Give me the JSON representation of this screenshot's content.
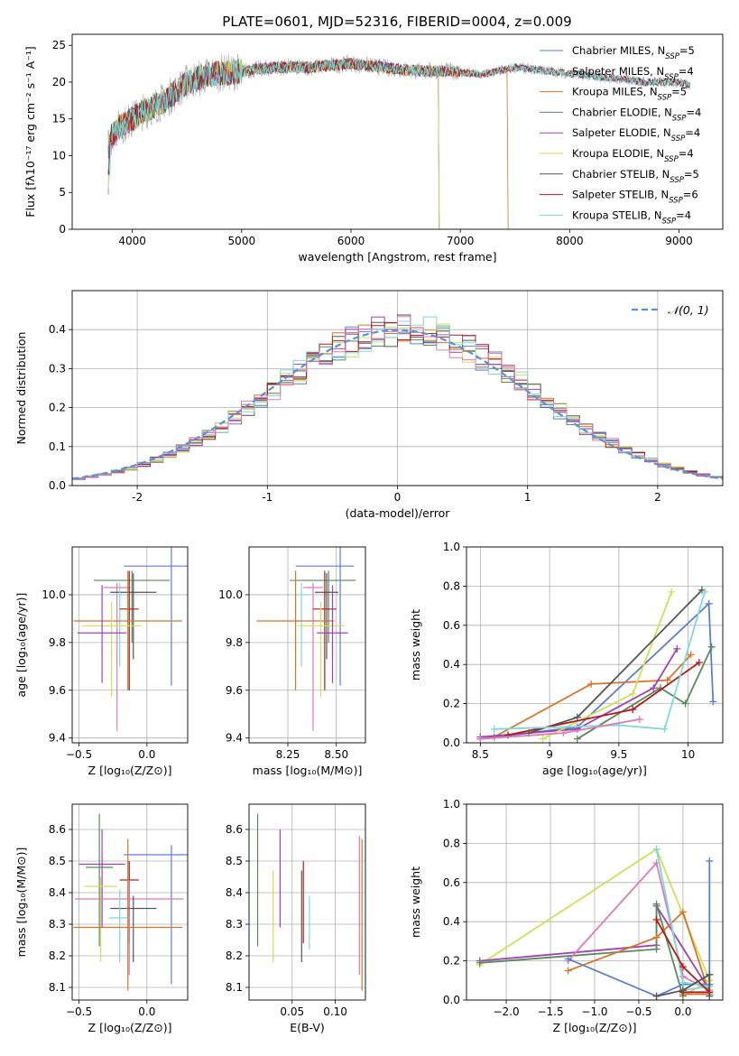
{
  "figure": {
    "title": "PLATE=0601, MJD=52316, FIBERID=0004, z=0.009"
  },
  "chart_data": [
    {
      "id": "spectrum",
      "type": "line",
      "xlabel": "wavelength [Angstrom, rest frame]",
      "ylabel": "Flux [fλ10⁻¹⁷ erg cm⁻² s⁻¹ A⁻¹]",
      "xlim": [
        3450,
        9400
      ],
      "ylim": [
        0,
        26.5
      ],
      "xticks": [
        4000,
        5000,
        6000,
        7000,
        8000,
        9000
      ],
      "yticks": [
        0,
        5,
        10,
        15,
        20,
        25
      ],
      "grid": false,
      "legend_position": "top-right",
      "continuum": {
        "x": [
          3780,
          3850,
          3950,
          4100,
          4300,
          4500,
          4700,
          5000,
          5300,
          5600,
          6000,
          6300,
          6600,
          6900,
          7200,
          7500,
          7800,
          8100,
          8400,
          8700,
          9000,
          9100
        ],
        "y": [
          12,
          13.5,
          14.5,
          16,
          17.5,
          20,
          21,
          21.5,
          22,
          22,
          22.5,
          22,
          21.5,
          21.5,
          21,
          22,
          21.5,
          21,
          20.5,
          20,
          20,
          19.5
        ]
      },
      "series": [
        {
          "name": "Chabrier MILES, N",
          "sub": "SSP",
          "suffix": "=5",
          "color": "#5b7fcf",
          "end": 9100
        },
        {
          "name": "Salpeter MILES, N",
          "sub": "SSP",
          "suffix": "=4",
          "color": "#aaaaaa",
          "end": 9100
        },
        {
          "name": "Kroupa MILES, N",
          "sub": "SSP",
          "suffix": "=5",
          "color": "#d8742a",
          "end": 7430
        },
        {
          "name": "Chabrier ELODIE, N",
          "sub": "SSP",
          "suffix": "=4",
          "color": "#5a8a5a",
          "end": 6800
        },
        {
          "name": "Salpeter ELODIE, N",
          "sub": "SSP",
          "suffix": "=4",
          "color": "#a040b8",
          "end": 6800
        },
        {
          "name": "Kroupa ELODIE, N",
          "sub": "SSP",
          "suffix": "=4",
          "color": "#cde05a",
          "end": 6800
        },
        {
          "name": "Chabrier STELIB, N",
          "sub": "SSP",
          "suffix": "=5",
          "color": "#555555",
          "end": 9100
        },
        {
          "name": "Salpeter STELIB, N",
          "sub": "SSP",
          "suffix": "=6",
          "color": "#b01c1c",
          "end": 9100
        },
        {
          "name": "Kroupa STELIB, N",
          "sub": "SSP",
          "suffix": "=4",
          "color": "#7fd8d8",
          "end": 9100
        }
      ]
    },
    {
      "id": "residuals",
      "type": "histogram",
      "xlabel": "(data-model)/error",
      "ylabel": "Normed distribution",
      "xlim": [
        -2.5,
        2.5
      ],
      "ylim": [
        0,
        0.5
      ],
      "xticks": [
        -2,
        -1,
        0,
        1,
        2
      ],
      "yticks": [
        0.0,
        0.1,
        0.2,
        0.3,
        0.4
      ],
      "grid": true,
      "legend": "𝒩(0, 1)",
      "legend_position": "top-right",
      "gaussian": {
        "mean": 0,
        "sigma": 1,
        "color": "#5b8fd9"
      },
      "bin_width": 0.1,
      "bin_start": -2.5,
      "series_colors": [
        "#5b7fcf",
        "#d8742a",
        "#5a8a5a",
        "#a040b8",
        "#cde05a",
        "#555555",
        "#b01c1c",
        "#7fd8d8",
        "#e07ab4"
      ]
    },
    {
      "id": "age_vs_Z",
      "type": "errorbar",
      "xlabel": "Z [log₁₀(Z/Z⊙)]",
      "ylabel": "age  [log₁₀(age/yr)]",
      "xlim": [
        -0.55,
        0.3
      ],
      "ylim": [
        9.38,
        10.2
      ],
      "xticks": [
        -0.5,
        0.0
      ],
      "xticklabels": [
        "−0.5",
        "0.0"
      ],
      "yticks": [
        9.4,
        9.6,
        9.8,
        10.0
      ],
      "grid": true,
      "points": [
        {
          "color": "#5b7fcf",
          "x": 0.18,
          "y": 10.12,
          "xerr": 0.35,
          "yerr": [
            0.5,
            0.08
          ]
        },
        {
          "color": "#5a8a5a",
          "x": -0.11,
          "y": 10.06,
          "xerr": 0.28,
          "yerr": [
            0.26,
            0.04
          ]
        },
        {
          "color": "#e07ab4",
          "x": -0.22,
          "y": 10.03,
          "xerr": 0.1,
          "yerr": [
            0.6,
            0.02
          ]
        },
        {
          "color": "#555555",
          "x": -0.1,
          "y": 10.01,
          "xerr": 0.17,
          "yerr": [
            0.28,
            0.08
          ]
        },
        {
          "color": "#7fd8d8",
          "x": -0.2,
          "y": 10.0,
          "xerr": 0.08,
          "yerr": [
            0.3,
            0.05
          ]
        },
        {
          "color": "#b01c1c",
          "x": -0.13,
          "y": 9.94,
          "xerr": 0.07,
          "yerr": [
            0.34,
            0.16
          ]
        },
        {
          "color": "#d8742a",
          "x": -0.14,
          "y": 9.89,
          "xerr": 0.4,
          "yerr": [
            0.29,
            0.21
          ]
        },
        {
          "color": "#cde05a",
          "x": -0.26,
          "y": 9.87,
          "xerr": 0.22,
          "yerr": [
            0.3,
            0.1
          ]
        },
        {
          "color": "#a040b8",
          "x": -0.33,
          "y": 9.84,
          "xerr": 0.18,
          "yerr": [
            0.21,
            0.2
          ]
        }
      ]
    },
    {
      "id": "age_vs_mass",
      "type": "errorbar",
      "xlabel": "mass [log₁₀(M/M⊙)]",
      "ylabel": "",
      "xlim": [
        8.05,
        8.65
      ],
      "ylim": [
        9.38,
        10.2
      ],
      "xticks": [
        8.25,
        8.5
      ],
      "xticklabels": [
        "8.25",
        "8.50"
      ],
      "yticks": [
        9.4,
        9.6,
        9.8,
        10.0
      ],
      "grid": true,
      "points": [
        {
          "color": "#5b7fcf",
          "x": 8.52,
          "y": 10.12,
          "xerr": [
            0.23,
            0.07
          ],
          "yerr": [
            0.5,
            0.08
          ]
        },
        {
          "color": "#5a8a5a",
          "x": 8.46,
          "y": 10.06,
          "xerr": [
            0.2,
            0.14
          ],
          "yerr": [
            0.26,
            0.04
          ]
        },
        {
          "color": "#e07ab4",
          "x": 8.38,
          "y": 10.03,
          "xerr": 0.05,
          "yerr": [
            0.6,
            0.02
          ]
        },
        {
          "color": "#555555",
          "x": 8.45,
          "y": 10.01,
          "xerr": 0.06,
          "yerr": [
            0.28,
            0.08
          ]
        },
        {
          "color": "#7fd8d8",
          "x": 8.32,
          "y": 10.0,
          "xerr": 0.04,
          "yerr": [
            0.3,
            0.05
          ]
        },
        {
          "color": "#b01c1c",
          "x": 8.44,
          "y": 9.94,
          "xerr": 0.06,
          "yerr": [
            0.34,
            0.16
          ]
        },
        {
          "color": "#d8742a",
          "x": 8.29,
          "y": 9.89,
          "xerr": 0.2,
          "yerr": [
            0.29,
            0.21
          ]
        },
        {
          "color": "#cde05a",
          "x": 8.42,
          "y": 9.87,
          "xerr": 0.12,
          "yerr": [
            0.3,
            0.1
          ]
        },
        {
          "color": "#a040b8",
          "x": 8.48,
          "y": 9.84,
          "xerr": 0.08,
          "yerr": [
            0.21,
            0.2
          ]
        }
      ]
    },
    {
      "id": "mass_weight_vs_age",
      "type": "line",
      "xlabel": "age  [log₁₀(age/yr)]",
      "ylabel": "mass weight",
      "xlim": [
        8.4,
        10.25
      ],
      "ylim": [
        0,
        1.0
      ],
      "xticks": [
        8.5,
        9.0,
        9.5,
        10.0
      ],
      "yticks": [
        0.0,
        0.2,
        0.4,
        0.6,
        0.8,
        1.0
      ],
      "grid": true,
      "series": [
        {
          "color": "#5b7fcf",
          "x": [
            8.5,
            9.2,
            10.15,
            10.18
          ],
          "y": [
            0.02,
            0.08,
            0.71,
            0.21
          ]
        },
        {
          "color": "#d8742a",
          "x": [
            8.6,
            9.3,
            9.85,
            10.02
          ],
          "y": [
            0.03,
            0.3,
            0.32,
            0.45
          ]
        },
        {
          "color": "#5a8a5a",
          "x": [
            9.2,
            9.8,
            9.98,
            10.17
          ],
          "y": [
            0.02,
            0.28,
            0.2,
            0.49
          ]
        },
        {
          "color": "#a040b8",
          "x": [
            8.5,
            9.2,
            9.75,
            9.92
          ],
          "y": [
            0.03,
            0.07,
            0.28,
            0.48
          ]
        },
        {
          "color": "#cde05a",
          "x": [
            8.95,
            9.6,
            9.88
          ],
          "y": [
            0.02,
            0.25,
            0.77
          ]
        },
        {
          "color": "#555555",
          "x": [
            8.85,
            9.2,
            10.1
          ],
          "y": [
            0.05,
            0.13,
            0.78
          ]
        },
        {
          "color": "#b01c1c",
          "x": [
            8.7,
            9.6,
            10.08
          ],
          "y": [
            0.04,
            0.17,
            0.41
          ]
        },
        {
          "color": "#7fd8d8",
          "x": [
            8.6,
            9.5,
            9.83,
            10.12
          ],
          "y": [
            0.07,
            0.09,
            0.07,
            0.77
          ]
        },
        {
          "color": "#e07ab4",
          "x": [
            8.5,
            9.1,
            9.65
          ],
          "y": [
            0.02,
            0.05,
            0.12
          ]
        }
      ]
    },
    {
      "id": "mass_vs_Z",
      "type": "errorbar",
      "xlabel": "Z [log₁₀(Z/Z⊙)]",
      "ylabel": "mass [log₁₀(M/M⊙)]",
      "xlim": [
        -0.55,
        0.3
      ],
      "ylim": [
        8.06,
        8.68
      ],
      "xticks": [
        -0.5,
        0.0
      ],
      "xticklabels": [
        "−0.5",
        "0.0"
      ],
      "yticks": [
        8.1,
        8.2,
        8.3,
        8.4,
        8.5,
        8.6
      ],
      "grid": true,
      "points": [
        {
          "color": "#5b7fcf",
          "x": 0.18,
          "y": 8.52,
          "xerr": 0.35,
          "yerr": [
            0.41,
            0.03
          ]
        },
        {
          "color": "#5a8a5a",
          "x": -0.35,
          "y": 8.48,
          "xerr": 0.1,
          "yerr": [
            0.25,
            0.17
          ]
        },
        {
          "color": "#a040b8",
          "x": -0.33,
          "y": 8.49,
          "xerr": 0.17,
          "yerr": [
            0.2,
            0.11
          ]
        },
        {
          "color": "#b01c1c",
          "x": -0.13,
          "y": 8.44,
          "xerr": 0.07,
          "yerr": [
            0.2,
            0.06
          ]
        },
        {
          "color": "#cde05a",
          "x": -0.34,
          "y": 8.42,
          "xerr": 0.12,
          "yerr": [
            0.24,
            0.03
          ]
        },
        {
          "color": "#e07ab4",
          "x": -0.13,
          "y": 8.38,
          "xerr": 0.4,
          "yerr": [
            0.24,
            0.06
          ]
        },
        {
          "color": "#555555",
          "x": -0.1,
          "y": 8.35,
          "xerr": 0.17,
          "yerr": [
            0.17,
            0.04
          ]
        },
        {
          "color": "#7fd8d8",
          "x": -0.2,
          "y": 8.32,
          "xerr": 0.08,
          "yerr": [
            0.14,
            0.09
          ]
        },
        {
          "color": "#d8742a",
          "x": -0.14,
          "y": 8.29,
          "xerr": 0.4,
          "yerr": [
            0.2,
            0.28
          ]
        }
      ]
    },
    {
      "id": "mass_vs_ebv",
      "type": "errorbar",
      "xlabel": "E(B-V)",
      "ylabel": "",
      "xlim": [
        0.0,
        0.135
      ],
      "ylim": [
        8.06,
        8.68
      ],
      "xticks": [
        0.05,
        0.1
      ],
      "xticklabels": [
        "0.05",
        "0.10"
      ],
      "yticks": [
        8.1,
        8.2,
        8.3,
        8.4,
        8.5,
        8.6
      ],
      "grid": true,
      "points": [
        {
          "color": "#5a8a5a",
          "x": 0.01,
          "y": 8.48,
          "xerr": 0,
          "yerr": [
            0.25,
            0.17
          ]
        },
        {
          "color": "#cde05a",
          "x": 0.028,
          "y": 8.42,
          "xerr": 0,
          "yerr": [
            0.24,
            0.05
          ]
        },
        {
          "color": "#a040b8",
          "x": 0.036,
          "y": 8.49,
          "xerr": 0,
          "yerr": [
            0.2,
            0.11
          ]
        },
        {
          "color": "#555555",
          "x": 0.061,
          "y": 8.36,
          "xerr": 0,
          "yerr": [
            0.18,
            0.11
          ]
        },
        {
          "color": "#b01c1c",
          "x": 0.063,
          "y": 8.44,
          "xerr": 0,
          "yerr": [
            0.2,
            0.06
          ]
        },
        {
          "color": "#7fd8d8",
          "x": 0.07,
          "y": 8.32,
          "xerr": 0,
          "yerr": [
            0.1,
            0.07
          ]
        },
        {
          "color": "#e07ab4",
          "x": 0.128,
          "y": 8.38,
          "xerr": 0,
          "yerr": [
            0.24,
            0.2
          ]
        },
        {
          "color": "#d8742a",
          "x": 0.131,
          "y": 8.33,
          "xerr": 0,
          "yerr": [
            0.24,
            0.24
          ]
        }
      ]
    },
    {
      "id": "mass_weight_vs_Z",
      "type": "line",
      "xlabel": "Z [log₁₀(Z/Z⊙)]",
      "ylabel": "mass weight",
      "xlim": [
        -2.45,
        0.45
      ],
      "ylim": [
        0,
        1.0
      ],
      "xticks": [
        -2.0,
        -1.5,
        -1.0,
        -0.5,
        0.0
      ],
      "xticklabels": [
        "−2.0",
        "−1.5",
        "−1.0",
        "−0.5",
        "0.0"
      ],
      "yticks": [
        0.0,
        0.2,
        0.4,
        0.6,
        0.8,
        1.0
      ],
      "grid": true,
      "series": [
        {
          "color": "#cde05a",
          "x": [
            -2.3,
            -0.3,
            0.3,
            0.0
          ],
          "y": [
            0.18,
            0.77,
            0.1,
            0.02
          ]
        },
        {
          "color": "#a040b8",
          "x": [
            -2.3,
            -0.3,
            -0.3,
            0.3
          ],
          "y": [
            0.2,
            0.28,
            0.48,
            0.05
          ]
        },
        {
          "color": "#5a8a5a",
          "x": [
            -2.3,
            -0.3,
            -0.3,
            0.0
          ],
          "y": [
            0.19,
            0.26,
            0.49,
            0.02
          ]
        },
        {
          "color": "#e07ab4",
          "x": [
            -1.3,
            -0.3,
            0.0,
            0.3
          ],
          "y": [
            0.2,
            0.7,
            0.12,
            0.05
          ]
        },
        {
          "color": "#d8742a",
          "x": [
            -1.3,
            -0.3,
            0.0,
            0.3,
            0.0
          ],
          "y": [
            0.15,
            0.32,
            0.45,
            0.03,
            0.03
          ]
        },
        {
          "color": "#5b7fcf",
          "x": [
            -1.3,
            -0.3,
            0.0,
            0.3,
            0.3
          ],
          "y": [
            0.21,
            0.02,
            0.08,
            0.08,
            0.71
          ]
        },
        {
          "color": "#7fd8d8",
          "x": [
            -0.3,
            0.0,
            0.3,
            0.0
          ],
          "y": [
            0.77,
            0.09,
            0.07,
            0.05
          ]
        },
        {
          "color": "#b01c1c",
          "x": [
            -0.3,
            0.0,
            0.3,
            0.0
          ],
          "y": [
            0.41,
            0.17,
            0.04,
            0.04
          ]
        },
        {
          "color": "#555555",
          "x": [
            -0.3,
            0.0,
            0.3,
            0.3
          ],
          "y": [
            0.02,
            0.05,
            0.13,
            0.02
          ]
        }
      ]
    }
  ]
}
